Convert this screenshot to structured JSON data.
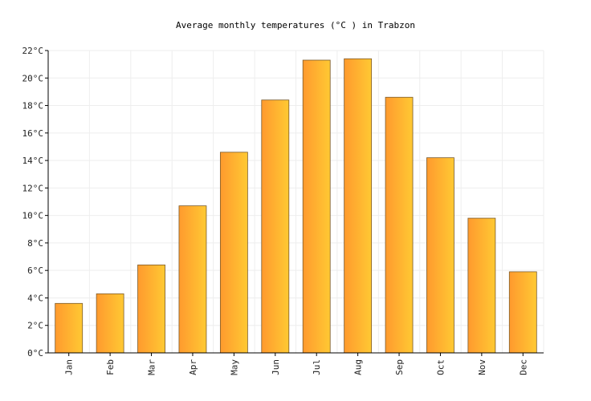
{
  "chart_data": {
    "type": "bar",
    "title": "Average monthly temperatures (°C ) in Trabzon",
    "categories": [
      "Jan",
      "Feb",
      "Mar",
      "Apr",
      "May",
      "Jun",
      "Jul",
      "Aug",
      "Sep",
      "Oct",
      "Nov",
      "Dec"
    ],
    "values": [
      3.6,
      4.3,
      6.4,
      10.7,
      14.6,
      18.4,
      21.3,
      21.4,
      18.6,
      14.2,
      9.8,
      5.9
    ],
    "ylim": [
      0,
      22
    ],
    "yticks": [
      "0°C",
      "2°C",
      "4°C",
      "6°C",
      "8°C",
      "10°C",
      "12°C",
      "14°C",
      "16°C",
      "18°C",
      "20°C",
      "22°C"
    ],
    "grid": true,
    "colors": {
      "bar_left": "#ff9a2e",
      "bar_right": "#ffc933",
      "bar_stroke": "#7a5a2a",
      "grid": "#eeeeee",
      "axis": "#000000"
    }
  }
}
